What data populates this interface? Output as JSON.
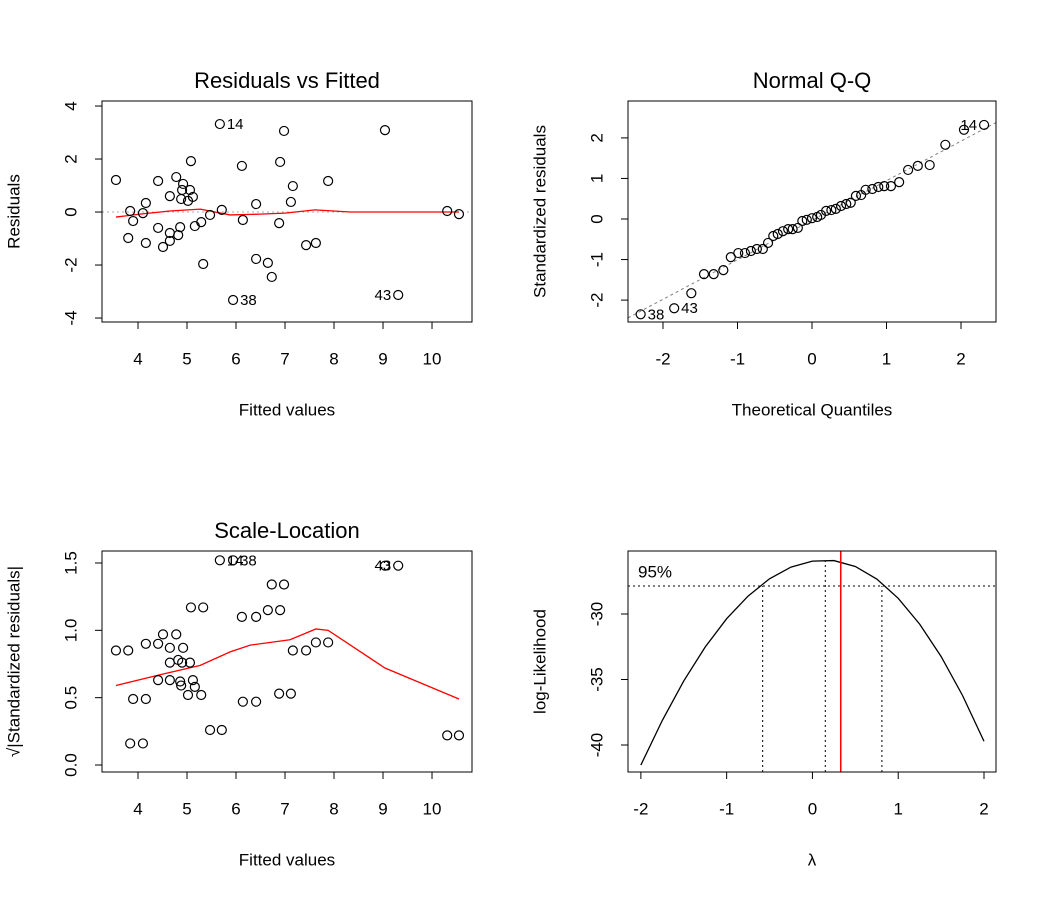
{
  "chart_data": [
    {
      "type": "scatter",
      "title": "Residuals vs Fitted",
      "x_label": "Fitted values",
      "y_label": "Residuals",
      "x": [
        3.55,
        3.84,
        3.8,
        3.9,
        4.1,
        4.16,
        4.16,
        4.41,
        4.41,
        4.51,
        4.65,
        4.65,
        4.65,
        4.78,
        4.82,
        4.86,
        4.9,
        4.92,
        4.88,
        5.02,
        5.06,
        5.12,
        5.08,
        5.16,
        5.29,
        5.33,
        5.47,
        5.67,
        5.71,
        5.94,
        6.12,
        6.14,
        6.41,
        6.41,
        6.65,
        6.73,
        6.9,
        6.88,
        6.98,
        7.12,
        7.16,
        7.43,
        7.63,
        7.88,
        9.04,
        9.31,
        10.31,
        10.55
      ],
      "values": [
        1.21,
        0.04,
        -0.98,
        -0.34,
        -0.04,
        0.34,
        -1.17,
        1.17,
        -0.6,
        -1.32,
        0.6,
        -0.79,
        -1.09,
        1.32,
        -0.87,
        -0.57,
        0.83,
        1.06,
        0.49,
        0.42,
        0.83,
        0.57,
        1.92,
        -0.53,
        -0.38,
        -1.96,
        -0.11,
        3.32,
        0.08,
        -3.32,
        1.74,
        -0.3,
        0.3,
        -1.77,
        -1.92,
        -2.45,
        1.89,
        -0.42,
        3.06,
        0.38,
        0.98,
        -1.25,
        -1.17,
        1.17,
        3.09,
        -3.13,
        0.04,
        -0.08
      ],
      "point_labels": [
        null,
        null,
        null,
        null,
        null,
        null,
        null,
        null,
        null,
        null,
        null,
        null,
        null,
        null,
        null,
        null,
        null,
        null,
        null,
        null,
        null,
        null,
        null,
        null,
        null,
        null,
        null,
        "14",
        null,
        "38",
        null,
        null,
        null,
        null,
        null,
        null,
        null,
        null,
        null,
        null,
        null,
        null,
        null,
        null,
        null,
        "43",
        null,
        null
      ],
      "smooth": {
        "x": [
          3.55,
          4.04,
          4.65,
          5.27,
          5.88,
          6.49,
          7.0,
          7.61,
          8.33,
          9.35,
          10.55
        ],
        "values": [
          -0.19,
          -0.08,
          0.04,
          0.11,
          -0.11,
          -0.08,
          -0.04,
          0.08,
          0,
          0,
          0
        ],
        "color": "#ff0000"
      },
      "reference_y": 0,
      "xlim": [
        3.265,
        10.816
      ],
      "ylim": [
        -4.15,
        4.19
      ],
      "xticks": [
        4,
        5,
        6,
        7,
        8,
        9,
        10
      ],
      "yticks": [
        -4,
        -2,
        0,
        2,
        4
      ]
    },
    {
      "type": "scatter",
      "title": "Normal Q-Q",
      "x_label": "Theoretical Quantiles",
      "y_label": "Standardized residuals",
      "x": [
        -2.3,
        -1.85,
        -1.62,
        -1.45,
        -1.32,
        -1.19,
        -1.09,
        -0.99,
        -0.9,
        -0.82,
        -0.74,
        -0.66,
        -0.59,
        -0.52,
        -0.46,
        -0.39,
        -0.32,
        -0.26,
        -0.19,
        -0.13,
        -0.07,
        0.0,
        0.07,
        0.12,
        0.19,
        0.26,
        0.32,
        0.39,
        0.46,
        0.52,
        0.59,
        0.66,
        0.72,
        0.81,
        0.89,
        0.97,
        1.06,
        1.17,
        1.29,
        1.42,
        1.58,
        1.79,
        2.04,
        2.31
      ],
      "values": [
        -2.35,
        -2.2,
        -1.83,
        -1.36,
        -1.36,
        -1.26,
        -0.94,
        -0.84,
        -0.84,
        -0.79,
        -0.74,
        -0.74,
        -0.59,
        -0.42,
        -0.37,
        -0.3,
        -0.25,
        -0.25,
        -0.22,
        -0.05,
        -0.02,
        0.02,
        0.05,
        0.1,
        0.2,
        0.22,
        0.25,
        0.32,
        0.37,
        0.4,
        0.57,
        0.59,
        0.72,
        0.74,
        0.79,
        0.81,
        0.81,
        0.91,
        1.21,
        1.31,
        1.33,
        1.83,
        2.2,
        2.32
      ],
      "point_labels": [
        "38",
        "43",
        null,
        null,
        null,
        null,
        null,
        null,
        null,
        null,
        null,
        null,
        null,
        null,
        null,
        null,
        null,
        null,
        null,
        null,
        null,
        null,
        null,
        null,
        null,
        null,
        null,
        null,
        null,
        null,
        null,
        null,
        null,
        null,
        null,
        null,
        null,
        null,
        null,
        null,
        null,
        null,
        null,
        "14"
      ],
      "reference_line": {
        "intercept": -0.03,
        "slope": 0.975,
        "color": "#808080"
      },
      "xlim": [
        -2.47,
        2.47
      ],
      "ylim": [
        -2.54,
        2.91
      ],
      "xticks": [
        -2,
        -1,
        0,
        1,
        2
      ],
      "yticks": [
        -2,
        -1,
        0,
        1,
        2
      ]
    },
    {
      "type": "scatter",
      "title": "Scale-Location",
      "x_label": "Fitted values",
      "y_label": "√|Standardized residuals|",
      "x": [
        3.55,
        3.8,
        3.9,
        3.84,
        4.1,
        4.16,
        4.16,
        4.41,
        4.41,
        4.51,
        4.65,
        4.65,
        4.65,
        4.78,
        4.82,
        4.88,
        4.86,
        4.92,
        4.9,
        5.06,
        5.02,
        5.12,
        5.16,
        5.08,
        5.29,
        5.33,
        5.47,
        5.71,
        5.67,
        5.94,
        6.12,
        6.14,
        6.41,
        6.41,
        6.65,
        6.73,
        6.9,
        6.88,
        6.98,
        7.12,
        7.16,
        7.43,
        7.63,
        7.88,
        9.04,
        9.31,
        10.31,
        10.55
      ],
      "values": [
        0.85,
        0.85,
        0.49,
        0.16,
        0.16,
        0.49,
        0.9,
        0.63,
        0.9,
        0.97,
        0.76,
        0.63,
        0.87,
        0.97,
        0.78,
        0.59,
        0.62,
        0.87,
        0.76,
        0.76,
        0.52,
        0.63,
        0.58,
        1.17,
        0.52,
        1.17,
        0.26,
        0.26,
        1.52,
        1.52,
        1.1,
        0.47,
        0.47,
        1.1,
        1.15,
        1.34,
        1.15,
        0.53,
        1.34,
        0.53,
        0.85,
        0.85,
        0.91,
        0.91,
        1.48,
        1.48,
        0.22,
        0.22
      ],
      "point_labels": [
        null,
        null,
        null,
        null,
        null,
        null,
        null,
        null,
        null,
        null,
        null,
        null,
        null,
        null,
        null,
        null,
        null,
        null,
        null,
        null,
        null,
        null,
        null,
        null,
        null,
        null,
        null,
        null,
        "14",
        "38",
        null,
        null,
        null,
        null,
        null,
        null,
        null,
        null,
        null,
        null,
        null,
        null,
        null,
        null,
        null,
        "43",
        null,
        null
      ],
      "smooth": {
        "x": [
          3.55,
          4.45,
          5.27,
          5.88,
          6.29,
          7.1,
          7.63,
          7.88,
          9.04,
          10.55
        ],
        "values": [
          0.59,
          0.67,
          0.74,
          0.84,
          0.89,
          0.93,
          1.01,
          1.0,
          0.72,
          0.49
        ],
        "color": "#ff0000"
      },
      "xlim": [
        3.265,
        10.816
      ],
      "ylim": [
        -0.052,
        1.589
      ],
      "xticks": [
        4,
        5,
        6,
        7,
        8,
        9,
        10
      ],
      "yticks": [
        {
          "value": 0,
          "label": "0.0"
        },
        0.5,
        {
          "value": 1,
          "label": "1.0"
        },
        1.5
      ]
    },
    {
      "type": "line",
      "x_label": "λ",
      "y_label": "log-Likelihood",
      "color": "#000000",
      "x": [
        -2,
        -1.75,
        -1.5,
        -1.25,
        -1,
        -0.75,
        -0.5,
        -0.25,
        0,
        0.25,
        0.5,
        0.75,
        1,
        1.25,
        1.5,
        1.75,
        2
      ],
      "values": [
        -41.53,
        -38.12,
        -35.11,
        -32.52,
        -30.36,
        -28.63,
        -27.31,
        -26.42,
        -25.96,
        -25.92,
        -26.37,
        -27.33,
        -28.8,
        -30.77,
        -33.24,
        -36.22,
        -39.71
      ],
      "hline": -27.86,
      "hline_label": "95%",
      "vlines": [
        -0.58,
        0.15,
        0.81
      ],
      "selected_x": 0.33,
      "selected_color": "#ff0000",
      "xlim": [
        -2.15,
        2.14
      ],
      "ylim": [
        -42.06,
        -25.19
      ],
      "xticks": [
        -2,
        -1,
        0,
        1,
        2
      ],
      "yticks": [
        -40,
        -35,
        -30
      ]
    }
  ]
}
